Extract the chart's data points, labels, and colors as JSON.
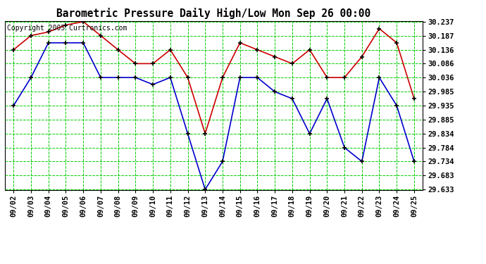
{
  "title": "Barometric Pressure Daily High/Low Mon Sep 26 00:00",
  "copyright": "Copyright 2005 Curtronics.com",
  "dates": [
    "09/02",
    "09/03",
    "09/04",
    "09/05",
    "09/06",
    "09/07",
    "09/08",
    "09/09",
    "09/10",
    "09/11",
    "09/12",
    "09/13",
    "09/14",
    "09/15",
    "09/16",
    "09/17",
    "09/18",
    "09/19",
    "09/20",
    "09/21",
    "09/22",
    "09/23",
    "09/24",
    "09/25"
  ],
  "high": [
    30.136,
    30.187,
    30.2,
    30.225,
    30.237,
    30.187,
    30.136,
    30.086,
    30.086,
    30.136,
    30.036,
    29.834,
    30.036,
    30.161,
    30.136,
    30.111,
    30.086,
    30.136,
    30.036,
    30.036,
    30.111,
    30.212,
    30.161,
    29.96
  ],
  "low": [
    29.935,
    30.036,
    30.161,
    30.161,
    30.161,
    30.036,
    30.036,
    30.036,
    30.011,
    30.036,
    29.834,
    29.633,
    29.734,
    30.036,
    30.036,
    29.985,
    29.96,
    29.834,
    29.96,
    29.784,
    29.734,
    30.036,
    29.935,
    29.734
  ],
  "high_color": "#cc0000",
  "low_color": "#0000cc",
  "bg_color": "#ffffff",
  "plot_bg": "#ffffff",
  "grid_color": "#00cc00",
  "title_color": "#000000",
  "marker_color": "#000000",
  "ylim_min": 29.633,
  "ylim_max": 30.237,
  "yticks": [
    29.633,
    29.683,
    29.734,
    29.784,
    29.834,
    29.885,
    29.935,
    29.985,
    30.036,
    30.086,
    30.136,
    30.187,
    30.237
  ]
}
